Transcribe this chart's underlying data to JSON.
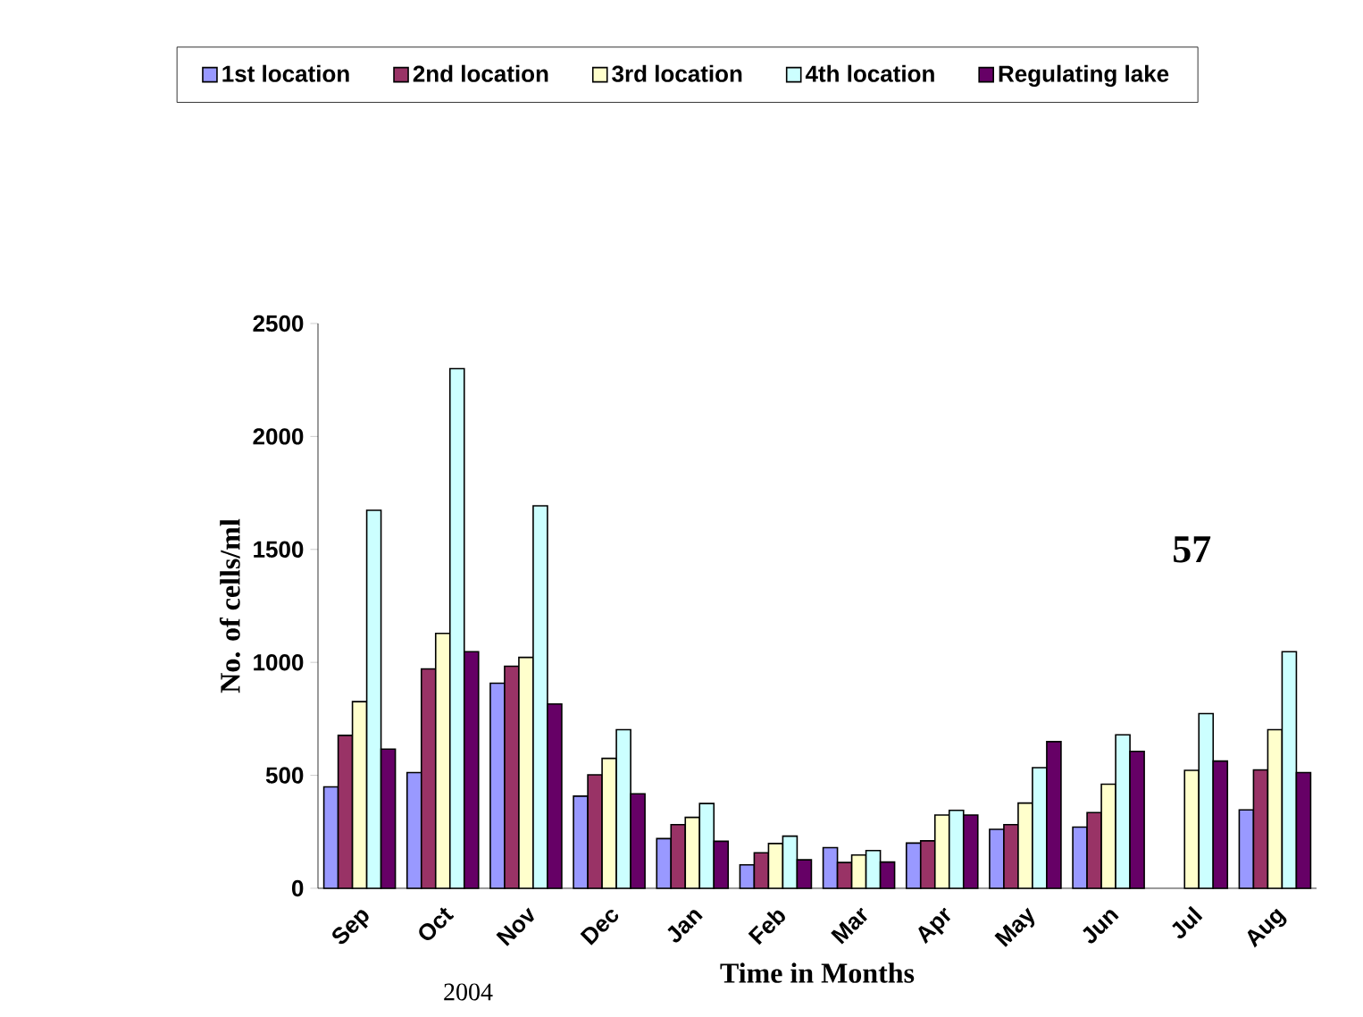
{
  "chart_data": {
    "type": "bar",
    "xlabel": "Time in Months",
    "ylabel": "No. of cells/ml",
    "categories": [
      "Sep",
      "Oct",
      "Nov",
      "Dec",
      "Jan",
      "Feb",
      "Mar",
      "Apr",
      "May",
      "Jun",
      "Jul",
      "Aug"
    ],
    "series": [
      {
        "name": "1st location",
        "color": "#9999ff",
        "values": [
          449,
          512,
          908,
          408,
          220,
          104,
          180,
          200,
          261,
          271,
          null,
          347
        ]
      },
      {
        "name": "2nd location",
        "color": "#993366",
        "values": [
          677,
          971,
          983,
          502,
          282,
          157,
          114,
          210,
          282,
          335,
          null,
          524
        ]
      },
      {
        "name": "3rd location",
        "color": "#ffffcc",
        "values": [
          826,
          1128,
          1022,
          575,
          314,
          198,
          147,
          324,
          377,
          461,
          522,
          702
        ]
      },
      {
        "name": "4th location",
        "color": "#ccffff",
        "values": [
          1673,
          2300,
          1693,
          702,
          375,
          231,
          167,
          345,
          534,
          679,
          773,
          1047
        ]
      },
      {
        "name": "Regulating lake",
        "color": "#660066",
        "values": [
          616,
          1047,
          816,
          418,
          208,
          126,
          116,
          324,
          649,
          606,
          563,
          512
        ]
      }
    ],
    "ylim": [
      0,
      2500
    ],
    "yticks": [
      0,
      500,
      1000,
      1500,
      2000,
      2500
    ],
    "grid": false,
    "legend": "top",
    "annotations": [
      "57",
      "2004"
    ]
  }
}
